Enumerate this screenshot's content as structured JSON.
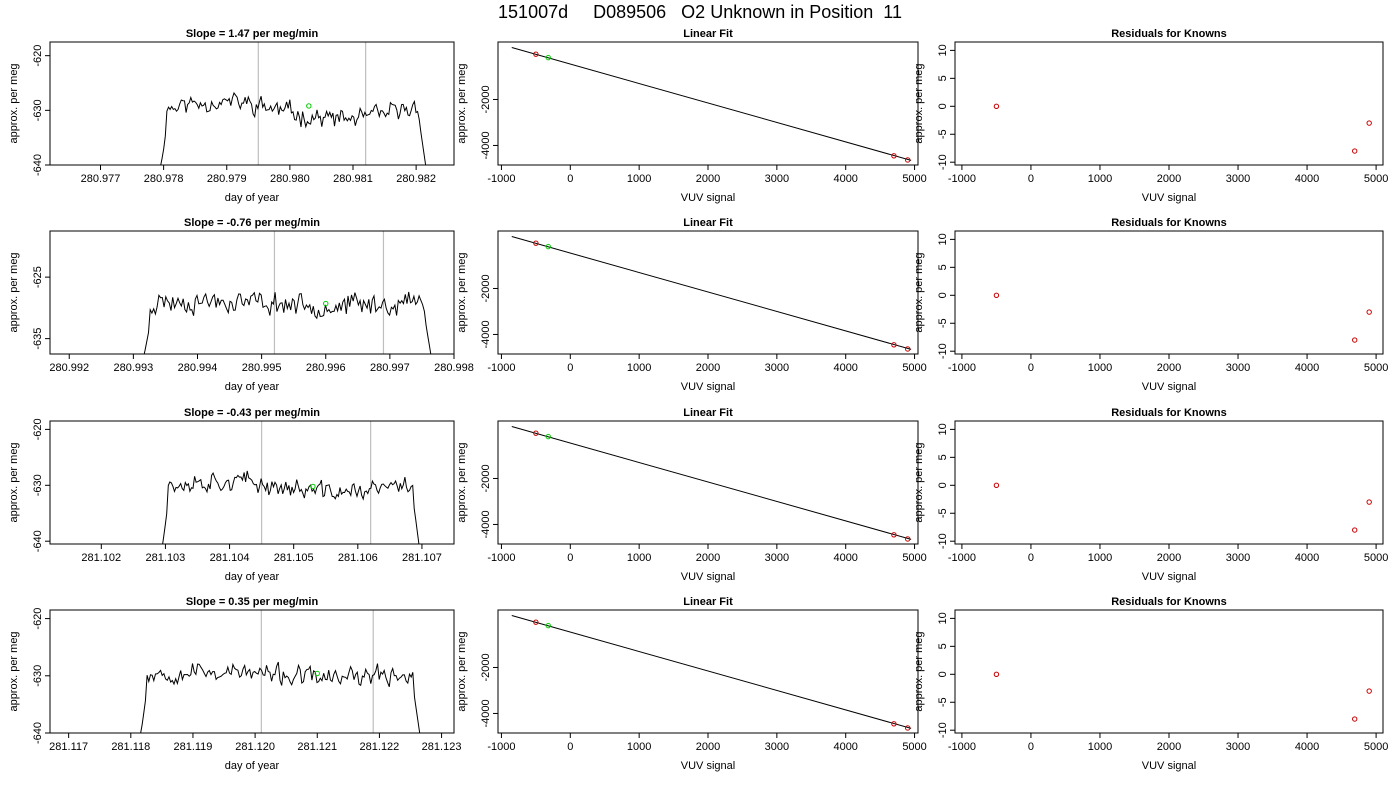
{
  "figure": {
    "title": "151007d     D089506   O2 Unknown in Position  11"
  },
  "colors": {
    "trace": "#000000",
    "marker_unknown": "#00cc00",
    "marker_known": "#cc0000",
    "vline": "#bebebe"
  },
  "chart_data": [
    {
      "type": "line",
      "title": "Slope =  1.47  per meg/min",
      "xlabel": "day of year",
      "ylabel": "approx. per meg",
      "xlim": [
        280.9762,
        280.9826
      ],
      "ylim": [
        -640,
        -617.5
      ],
      "xticks": [
        280.977,
        280.978,
        280.979,
        280.98,
        280.981,
        280.982
      ],
      "xtick_labels": [
        "280.977",
        "280.978",
        "280.979",
        "280.980",
        "280.981",
        "280.982"
      ],
      "yticks": [
        -640,
        -630,
        -620
      ],
      "ytick_labels": [
        "-640",
        "-630",
        "-620"
      ],
      "start": 280.9779,
      "end": 280.9822,
      "base": -630.0,
      "amp": 2.3,
      "bump": 1.6,
      "seed": 11,
      "vlines": [
        280.9795,
        280.9812
      ],
      "marker": [
        280.9803,
        -629.2
      ]
    },
    {
      "type": "scatter",
      "title": "Linear Fit",
      "xlabel": "VUV signal",
      "ylabel": "approx. per meg",
      "xlim": [
        -1050,
        5050
      ],
      "ylim": [
        -4850,
        500
      ],
      "xticks": [
        -1000,
        0,
        1000,
        2000,
        3000,
        4000,
        5000
      ],
      "xtick_labels": [
        "-1000",
        "0",
        "1000",
        "2000",
        "3000",
        "4000",
        "5000"
      ],
      "yticks": [
        -4000,
        -2000
      ],
      "ytick_labels": [
        "-4000",
        "-2000"
      ],
      "fit_line": [
        [
          -850,
          260
        ],
        [
          4950,
          -4650
        ]
      ],
      "known_points": [
        [
          -500,
          -30
        ],
        [
          4700,
          -4450
        ],
        [
          4900,
          -4630
        ]
      ],
      "unknown_points": [
        [
          -320,
          -180
        ]
      ]
    },
    {
      "type": "scatter",
      "title": "Residuals for Knowns",
      "xlabel": "VUV signal",
      "ylabel": "approx. per meg",
      "xlim": [
        -1100,
        5100
      ],
      "ylim": [
        -10.5,
        11.5
      ],
      "xticks": [
        -1000,
        0,
        1000,
        2000,
        3000,
        4000,
        5000
      ],
      "xtick_labels": [
        "-1000",
        "0",
        "1000",
        "2000",
        "3000",
        "4000",
        "5000"
      ],
      "yticks": [
        -10,
        -5,
        0,
        5,
        10
      ],
      "ytick_labels": [
        "-10",
        "-5",
        "0",
        "5",
        "10"
      ],
      "known_points": [
        [
          -500,
          0
        ],
        [
          4690,
          -8
        ],
        [
          4900,
          -3
        ]
      ]
    },
    {
      "type": "line",
      "title": "Slope =  -0.76  per meg/min",
      "xlabel": "day of year",
      "ylabel": "approx. per meg",
      "xlim": [
        280.9917,
        280.998
      ],
      "ylim": [
        -637.5,
        -617.5
      ],
      "xticks": [
        280.992,
        280.993,
        280.994,
        280.995,
        280.996,
        280.997,
        280.998
      ],
      "xtick_labels": [
        "280.992",
        "280.993",
        "280.994",
        "280.995",
        "280.996",
        "280.997",
        "280.998"
      ],
      "yticks": [
        -635,
        -625
      ],
      "ytick_labels": [
        "-635",
        "-625"
      ],
      "start": 280.9931,
      "end": 280.9977,
      "base": -629.2,
      "amp": 2.4,
      "bump": 0.4,
      "seed": 23,
      "vlines": [
        280.9952,
        280.9969
      ],
      "marker": [
        280.996,
        -629.3
      ]
    },
    {
      "type": "scatter",
      "title": "Linear Fit",
      "xlabel": "VUV signal",
      "ylabel": "approx. per meg",
      "xlim": [
        -1050,
        5050
      ],
      "ylim": [
        -4850,
        500
      ],
      "xticks": [
        -1000,
        0,
        1000,
        2000,
        3000,
        4000,
        5000
      ],
      "xtick_labels": [
        "-1000",
        "0",
        "1000",
        "2000",
        "3000",
        "4000",
        "5000"
      ],
      "yticks": [
        -4000,
        -2000
      ],
      "ytick_labels": [
        "-4000",
        "-2000"
      ],
      "fit_line": [
        [
          -850,
          260
        ],
        [
          4950,
          -4650
        ]
      ],
      "known_points": [
        [
          -500,
          -30
        ],
        [
          4700,
          -4450
        ],
        [
          4900,
          -4630
        ]
      ],
      "unknown_points": [
        [
          -320,
          -180
        ]
      ]
    },
    {
      "type": "scatter",
      "title": "Residuals for Knowns",
      "xlabel": "VUV signal",
      "ylabel": "approx. per meg",
      "xlim": [
        -1100,
        5100
      ],
      "ylim": [
        -10.5,
        11.5
      ],
      "xticks": [
        -1000,
        0,
        1000,
        2000,
        3000,
        4000,
        5000
      ],
      "xtick_labels": [
        "-1000",
        "0",
        "1000",
        "2000",
        "3000",
        "4000",
        "5000"
      ],
      "yticks": [
        -10,
        -5,
        0,
        5,
        10
      ],
      "ytick_labels": [
        "-10",
        "-5",
        "0",
        "5",
        "10"
      ],
      "known_points": [
        [
          -500,
          0
        ],
        [
          4690,
          -8
        ],
        [
          4900,
          -3
        ]
      ]
    },
    {
      "type": "line",
      "title": "Slope =  -0.43  per meg/min",
      "xlabel": "day of year",
      "ylabel": "approx. per meg",
      "xlim": [
        281.1012,
        281.1075
      ],
      "ylim": [
        -640.5,
        -618.5
      ],
      "xticks": [
        281.102,
        281.103,
        281.104,
        281.105,
        281.106,
        281.107
      ],
      "xtick_labels": [
        "281.102",
        "281.103",
        "281.104",
        "281.105",
        "281.106",
        "281.107"
      ],
      "yticks": [
        -640,
        -630,
        -620
      ],
      "ytick_labels": [
        "-640",
        "-630",
        "-620"
      ],
      "start": 281.1029,
      "end": 281.107,
      "base": -630.2,
      "amp": 2.2,
      "bump": 1.0,
      "seed": 37,
      "vlines": [
        281.1045,
        281.1062
      ],
      "marker": [
        281.1053,
        -630.2
      ]
    },
    {
      "type": "scatter",
      "title": "Linear Fit",
      "xlabel": "VUV signal",
      "ylabel": "approx. per meg",
      "xlim": [
        -1050,
        5050
      ],
      "ylim": [
        -4850,
        500
      ],
      "xticks": [
        -1000,
        0,
        1000,
        2000,
        3000,
        4000,
        5000
      ],
      "xtick_labels": [
        "-1000",
        "0",
        "1000",
        "2000",
        "3000",
        "4000",
        "5000"
      ],
      "yticks": [
        -4000,
        -2000
      ],
      "ytick_labels": [
        "-4000",
        "-2000"
      ],
      "fit_line": [
        [
          -850,
          260
        ],
        [
          4950,
          -4650
        ]
      ],
      "known_points": [
        [
          -500,
          -30
        ],
        [
          4700,
          -4450
        ],
        [
          4900,
          -4630
        ]
      ],
      "unknown_points": [
        [
          -320,
          -180
        ]
      ]
    },
    {
      "type": "scatter",
      "title": "Residuals for Knowns",
      "xlabel": "VUV signal",
      "ylabel": "approx. per meg",
      "xlim": [
        -1100,
        5100
      ],
      "ylim": [
        -10.5,
        11.5
      ],
      "xticks": [
        -1000,
        0,
        1000,
        2000,
        3000,
        4000,
        5000
      ],
      "xtick_labels": [
        "-1000",
        "0",
        "1000",
        "2000",
        "3000",
        "4000",
        "5000"
      ],
      "yticks": [
        -10,
        -5,
        0,
        5,
        10
      ],
      "ytick_labels": [
        "-10",
        "-5",
        "0",
        "5",
        "10"
      ],
      "known_points": [
        [
          -500,
          0
        ],
        [
          4690,
          -8
        ],
        [
          4900,
          -3
        ]
      ]
    },
    {
      "type": "line",
      "title": "Slope =  0.35  per meg/min",
      "xlabel": "day of year",
      "ylabel": "approx. per meg",
      "xlim": [
        281.1167,
        281.1232
      ],
      "ylim": [
        -640,
        -618.5
      ],
      "xticks": [
        281.117,
        281.118,
        281.119,
        281.12,
        281.121,
        281.122,
        281.123
      ],
      "xtick_labels": [
        "281.117",
        "281.118",
        "281.119",
        "281.120",
        "281.121",
        "281.122",
        "281.123"
      ],
      "yticks": [
        -640,
        -630,
        -620
      ],
      "ytick_labels": [
        "-640",
        "-630",
        "-620"
      ],
      "start": 281.1181,
      "end": 281.1227,
      "base": -629.8,
      "amp": 2.2,
      "bump": 0.6,
      "seed": 53,
      "vlines": [
        281.1201,
        281.1219
      ],
      "marker": [
        281.121,
        -629.6
      ]
    },
    {
      "type": "scatter",
      "title": "Linear Fit",
      "xlabel": "VUV signal",
      "ylabel": "approx. per meg",
      "xlim": [
        -1050,
        5050
      ],
      "ylim": [
        -4850,
        500
      ],
      "xticks": [
        -1000,
        0,
        1000,
        2000,
        3000,
        4000,
        5000
      ],
      "xtick_labels": [
        "-1000",
        "0",
        "1000",
        "2000",
        "3000",
        "4000",
        "5000"
      ],
      "yticks": [
        -4000,
        -2000
      ],
      "ytick_labels": [
        "-4000",
        "-2000"
      ],
      "fit_line": [
        [
          -850,
          260
        ],
        [
          4950,
          -4650
        ]
      ],
      "known_points": [
        [
          -500,
          -30
        ],
        [
          4700,
          -4450
        ],
        [
          4900,
          -4630
        ]
      ],
      "unknown_points": [
        [
          -320,
          -180
        ]
      ]
    },
    {
      "type": "scatter",
      "title": "Residuals for Knowns",
      "xlabel": "VUV signal",
      "ylabel": "approx. per meg",
      "xlim": [
        -1100,
        5100
      ],
      "ylim": [
        -10.5,
        11.5
      ],
      "xticks": [
        -1000,
        0,
        1000,
        2000,
        3000,
        4000,
        5000
      ],
      "xtick_labels": [
        "-1000",
        "0",
        "1000",
        "2000",
        "3000",
        "4000",
        "5000"
      ],
      "yticks": [
        -10,
        -5,
        0,
        5,
        10
      ],
      "ytick_labels": [
        "-10",
        "-5",
        "0",
        "5",
        "10"
      ],
      "known_points": [
        [
          -500,
          0
        ],
        [
          4690,
          -8
        ],
        [
          4900,
          -3
        ]
      ]
    }
  ]
}
